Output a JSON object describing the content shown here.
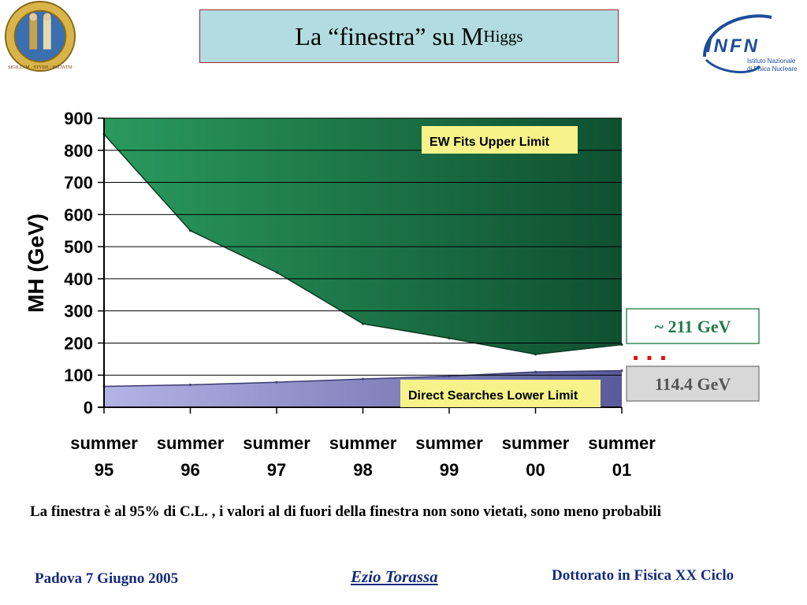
{
  "slide": {
    "title_main": "La “finestra” su M",
    "title_sub": "Higgs",
    "caption": "La finestra è al 95% di C.L.  , i valori al di fuori della finestra non sono vietati, sono meno probabili",
    "footer_left": "Padova 7 Giugno 2005",
    "footer_center": "Ezio Torassa",
    "footer_right": "Dottorato in Fisica XX Ciclo",
    "infn_logo_text": "INFN",
    "infn_logo_sub1": "Istituto Nazionale",
    "infn_logo_sub2": "di Fisica Nucleare",
    "seal_text": "SIGILLVM · STVDII · PATAVINI",
    "callout_upper": "~ 211 GeV",
    "callout_lower": "114.4 GeV",
    "callout_dots": "..."
  },
  "colors": {
    "upper_region": "#1f7a4a",
    "lower_region": "#8f8fca",
    "label_bg": "#f7f38a",
    "title_bg": "#b2dce0",
    "title_border": "#a02a2a",
    "footer_text": "#152a7e",
    "dots_red": "#e01010"
  },
  "chart_data": {
    "type": "area",
    "ylabel": "MH (GeV)",
    "xlabel": "",
    "ylim": [
      0,
      900
    ],
    "yticks": [
      0,
      100,
      200,
      300,
      400,
      500,
      600,
      700,
      800,
      900
    ],
    "grid": true,
    "categories": [
      {
        "line1": "summer",
        "line2": "95"
      },
      {
        "line1": "summer",
        "line2": "96"
      },
      {
        "line1": "summer",
        "line2": "97"
      },
      {
        "line1": "summer",
        "line2": "98"
      },
      {
        "line1": "summer",
        "line2": "99"
      },
      {
        "line1": "summer",
        "line2": "00"
      },
      {
        "line1": "summer",
        "line2": "01"
      }
    ],
    "series": [
      {
        "name": "EW Fits Upper Limit",
        "x": [
          0,
          1,
          2,
          3,
          4,
          5,
          6
        ],
        "values": [
          850,
          550,
          420,
          260,
          215,
          165,
          195
        ]
      },
      {
        "name": "Direct Searches Lower Limit",
        "x": [
          0,
          1,
          2,
          3,
          4,
          5,
          6
        ],
        "values": [
          65,
          70,
          78,
          88,
          97,
          110,
          114
        ]
      }
    ]
  }
}
